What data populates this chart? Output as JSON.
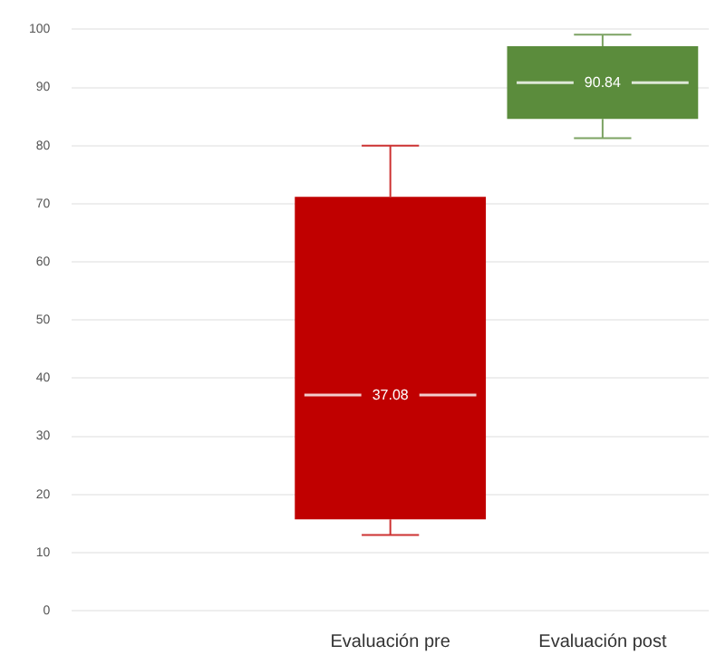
{
  "chart_data": {
    "type": "box",
    "categories": [
      null,
      "Evaluación pre",
      "Evaluación post"
    ],
    "boxes": [
      null,
      {
        "low": 13.0,
        "q1": 15.7,
        "median": 37.08,
        "q3": 71.2,
        "high": 80.0
      },
      {
        "low": 81.3,
        "q1": 84.6,
        "median": 90.84,
        "q3": 97.1,
        "high": 99.1
      }
    ],
    "colors": [
      "#c00000",
      "#c00000",
      "#5b8c3c"
    ],
    "ylim": [
      0,
      100
    ],
    "yticks": [
      0,
      10,
      20,
      30,
      40,
      50,
      60,
      70,
      80,
      90,
      100
    ],
    "value_labels": [
      null,
      "37.08",
      "90.84"
    ],
    "grid": "y",
    "legend": false
  }
}
